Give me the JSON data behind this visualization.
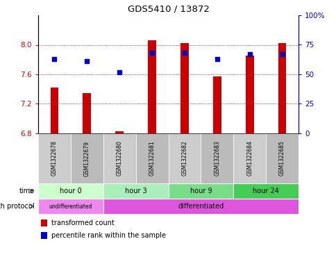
{
  "title": "GDS5410 / 13872",
  "samples": [
    "GSM1322678",
    "GSM1322679",
    "GSM1322680",
    "GSM1322681",
    "GSM1322682",
    "GSM1322683",
    "GSM1322684",
    "GSM1322685"
  ],
  "transformed_count": [
    7.42,
    7.35,
    6.83,
    8.06,
    8.02,
    7.57,
    7.85,
    8.02
  ],
  "percentile_rank": [
    63,
    61,
    52,
    68,
    68,
    63,
    67,
    67
  ],
  "ylim_left": [
    6.8,
    8.4
  ],
  "ylim_right": [
    0,
    100
  ],
  "yticks_left": [
    6.8,
    7.2,
    7.6,
    8.0
  ],
  "yticks_right": [
    0,
    25,
    50,
    75,
    100
  ],
  "ytick_labels_right": [
    "0",
    "25",
    "50",
    "75",
    "100%"
  ],
  "bar_color": "#cc0000",
  "dot_color": "#0000cc",
  "bar_bottom": 6.8,
  "time_groups": [
    {
      "label": "hour 0",
      "start": 0,
      "end": 2,
      "color": "#ccffcc"
    },
    {
      "label": "hour 3",
      "start": 2,
      "end": 4,
      "color": "#aaeebb"
    },
    {
      "label": "hour 9",
      "start": 4,
      "end": 6,
      "color": "#77dd88"
    },
    {
      "label": "hour 24",
      "start": 6,
      "end": 8,
      "color": "#44cc55"
    }
  ],
  "growth_groups": [
    {
      "label": "undifferentiated",
      "start": 0,
      "end": 2,
      "color": "#ee88ee"
    },
    {
      "label": "differentiated",
      "start": 2,
      "end": 8,
      "color": "#dd55dd"
    }
  ],
  "sample_area_color": "#cccccc",
  "sample_area_alt_color": "#bbbbbb",
  "legend_items": [
    {
      "color": "#cc0000",
      "label": "transformed count"
    },
    {
      "color": "#0000cc",
      "label": "percentile rank within the sample"
    }
  ],
  "left_axis_color": "#cc0000",
  "right_axis_color": "#0000cc",
  "background_color": "#ffffff",
  "bar_width": 0.25
}
